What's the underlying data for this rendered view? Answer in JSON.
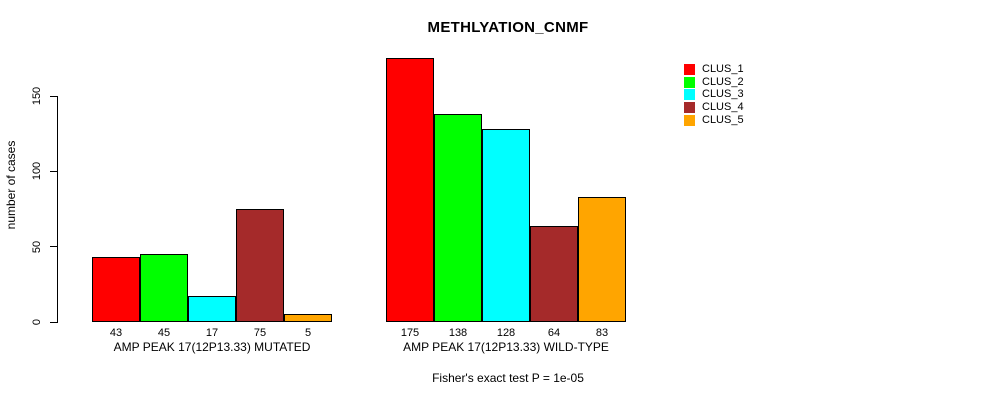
{
  "chart_data": {
    "type": "bar",
    "title": "METHLYATION_CNMF",
    "ylabel": "number of cases",
    "xlabel": "",
    "ylim": [
      0,
      175
    ],
    "y_ticks": [
      0,
      50,
      100,
      150
    ],
    "grid": false,
    "legend_position": "top-right",
    "categories": [
      "AMP PEAK 17(12P13.33) MUTATED",
      "AMP PEAK 17(12P13.33) WILD-TYPE"
    ],
    "series": [
      {
        "name": "CLUS_1",
        "color": "#FF0000",
        "values": [
          43,
          175
        ]
      },
      {
        "name": "CLUS_2",
        "color": "#00FF00",
        "values": [
          45,
          138
        ]
      },
      {
        "name": "CLUS_3",
        "color": "#00FFFF",
        "values": [
          17,
          128
        ]
      },
      {
        "name": "CLUS_4",
        "color": "#A52A2A",
        "values": [
          75,
          64
        ]
      },
      {
        "name": "CLUS_5",
        "color": "#FFA500",
        "values": [
          5,
          83
        ]
      }
    ],
    "annotation": "Fisher's exact test P = 1e-05"
  }
}
